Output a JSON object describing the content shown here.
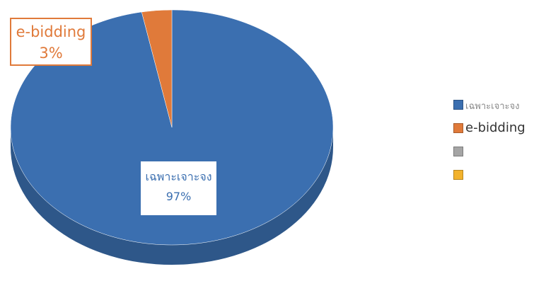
{
  "chart_data": {
    "type": "pie",
    "title": "",
    "categories": [
      "เฉพาะเจาะจง",
      "e-bidding",
      "",
      ""
    ],
    "values": [
      97,
      3,
      0,
      0
    ],
    "data_labels": [
      {
        "name": "เฉพาะเจาะจง",
        "value": "97%"
      },
      {
        "name": "e-bidding",
        "value": "3%"
      }
    ],
    "legend": {
      "placement": "right",
      "items": [
        {
          "label": "เฉพาะเจาะจง",
          "color": "#3b6fb0"
        },
        {
          "label": "e-bidding",
          "color": "#e07a3a"
        },
        {
          "label": "",
          "color": "#a5a5a5"
        },
        {
          "label": "",
          "color": "#f2b22c"
        }
      ]
    },
    "colors": [
      "#3b6fb0",
      "#e07a3a",
      "#a5a5a5",
      "#f2b22c"
    ],
    "style": "3d"
  }
}
